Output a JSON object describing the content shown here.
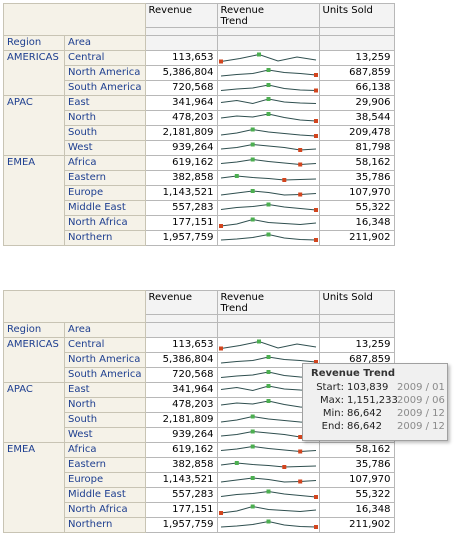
{
  "columns": {
    "region": "Region",
    "area": "Area",
    "revenue": "Revenue",
    "trend_line1": "Revenue",
    "trend_line2": "Trend",
    "units": "Units Sold"
  },
  "colors": {
    "link": "#1d3e8f",
    "line": "#2f4f4f",
    "marker_max": "#4caf50",
    "marker_end": "#d2451e"
  },
  "rows": [
    {
      "region": "AMERICAS",
      "area": "Central",
      "revenue": "113,653",
      "units": "13,259",
      "trend": [
        0.15,
        0.45,
        0.85,
        0.2,
        0.6,
        0.3
      ],
      "max": 2,
      "end": "start"
    },
    {
      "region": "",
      "area": "North America",
      "revenue": "5,386,804",
      "units": "687,859",
      "trend": [
        0.2,
        0.35,
        0.45,
        0.8,
        0.55,
        0.45,
        0.3
      ],
      "max": 3,
      "end": "end"
    },
    {
      "region": "",
      "area": "South America",
      "revenue": "720,568",
      "units": "66,138",
      "trend": [
        0.25,
        0.4,
        0.5,
        0.8,
        0.45,
        0.3,
        0.25
      ],
      "max": 3,
      "end": "end"
    },
    {
      "region": "APAC",
      "area": "East",
      "revenue": "341,964",
      "units": "29,906",
      "trend": [
        0.55,
        0.75,
        0.45,
        0.9,
        0.6,
        0.5,
        0.45
      ],
      "max": 3,
      "end": "none"
    },
    {
      "region": "",
      "area": "North",
      "revenue": "478,203",
      "units": "38,544",
      "trend": [
        0.5,
        0.7,
        0.6,
        0.9,
        0.55,
        0.3,
        0.2
      ],
      "max": 3,
      "end": "end"
    },
    {
      "region": "",
      "area": "South",
      "revenue": "2,181,809",
      "units": "209,478",
      "trend": [
        0.3,
        0.5,
        0.85,
        0.6,
        0.45,
        0.3,
        0.2
      ],
      "max": 2,
      "end": "end"
    },
    {
      "region": "",
      "area": "West",
      "revenue": "939,264",
      "units": "81,798",
      "trend": [
        0.4,
        0.55,
        0.85,
        0.7,
        0.55,
        0.3,
        0.4
      ],
      "max": 2,
      "end": "near-end"
    },
    {
      "region": "EMEA",
      "area": "Africa",
      "revenue": "619,162",
      "units": "58,162",
      "trend": [
        0.45,
        0.6,
        0.85,
        0.65,
        0.5,
        0.35,
        0.45
      ],
      "max": 2,
      "end": "near-end"
    },
    {
      "region": "",
      "area": "Eastern",
      "revenue": "382,858",
      "units": "35,786",
      "trend": [
        0.5,
        0.7,
        0.55,
        0.45,
        0.3,
        0.35,
        0.4
      ],
      "max": 1,
      "end": "mid"
    },
    {
      "region": "",
      "area": "Europe",
      "revenue": "1,143,521",
      "units": "107,970",
      "trend": [
        0.3,
        0.5,
        0.7,
        0.55,
        0.3,
        0.35,
        0.45
      ],
      "max": 2,
      "end": "near-end"
    },
    {
      "region": "",
      "area": "Middle East",
      "revenue": "557,283",
      "units": "55,322",
      "trend": [
        0.35,
        0.55,
        0.65,
        0.85,
        0.6,
        0.45,
        0.3
      ],
      "max": 3,
      "end": "end"
    },
    {
      "region": "",
      "area": "North Africa",
      "revenue": "177,151",
      "units": "16,348",
      "trend": [
        0.2,
        0.4,
        0.85,
        0.55,
        0.45,
        0.35,
        0.5
      ],
      "max": 2,
      "end": "start"
    },
    {
      "region": "",
      "area": "Northern",
      "revenue": "1,957,759",
      "units": "211,902",
      "trend": [
        0.3,
        0.4,
        0.55,
        0.85,
        0.5,
        0.35,
        0.3
      ],
      "max": 3,
      "end": "end"
    }
  ],
  "tooltip": {
    "title": "Revenue Trend",
    "rows": [
      {
        "label": "Start:",
        "value": "103,839",
        "date": "2009 / 01"
      },
      {
        "label": "Max:",
        "value": "1,151,233",
        "date": "2009 / 06"
      },
      {
        "label": "Min:",
        "value": "86,642",
        "date": "2009 / 12"
      },
      {
        "label": "End:",
        "value": "86,642",
        "date": "2009 / 12"
      }
    ]
  }
}
